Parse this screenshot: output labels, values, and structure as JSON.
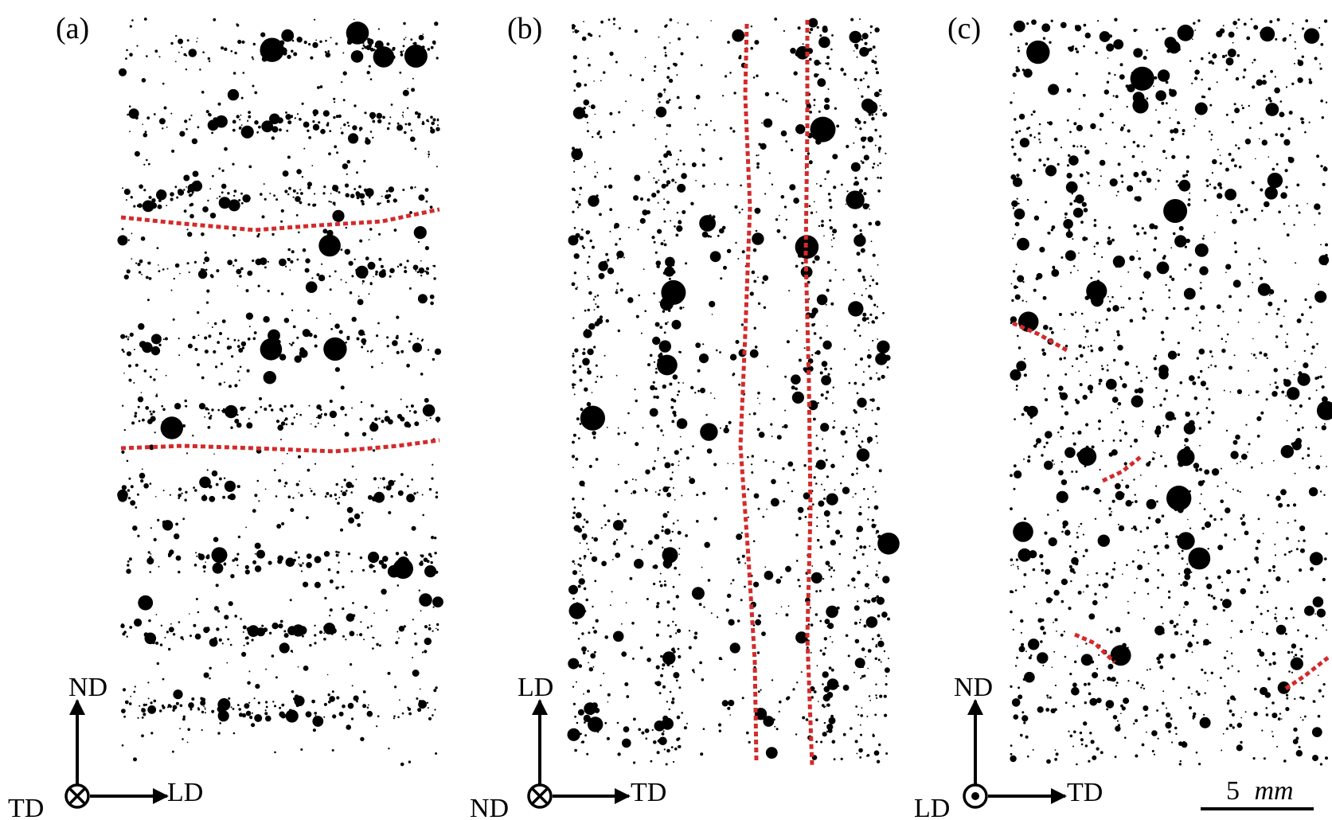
{
  "figure": {
    "panels": [
      {
        "label": "(a)",
        "axes": {
          "up": "ND",
          "right": "LD",
          "out_of_plane": "TD",
          "out_of_plane_symbol": "into-page-cross"
        },
        "red_dotted_traces": "two horizontal cracks across specimen",
        "pore_banding": "horizontal"
      },
      {
        "label": "(b)",
        "axes": {
          "up": "LD",
          "right": "TD",
          "out_of_plane": "ND",
          "out_of_plane_symbol": "into-page-cross"
        },
        "red_dotted_traces": "two vertical cracks across specimen",
        "pore_banding": "vertical"
      },
      {
        "label": "(c)",
        "axes": {
          "up": "ND",
          "right": "TD",
          "out_of_plane": "LD",
          "out_of_plane_symbol": "out-of-page-dot"
        },
        "red_dotted_traces": "short inclined crack segments",
        "pore_banding": "none"
      }
    ],
    "scale_bar": {
      "value": "5",
      "unit": "mm"
    },
    "colors": {
      "pores": "#000000",
      "cracks": "#d42a2a",
      "background": "#ffffff"
    }
  }
}
